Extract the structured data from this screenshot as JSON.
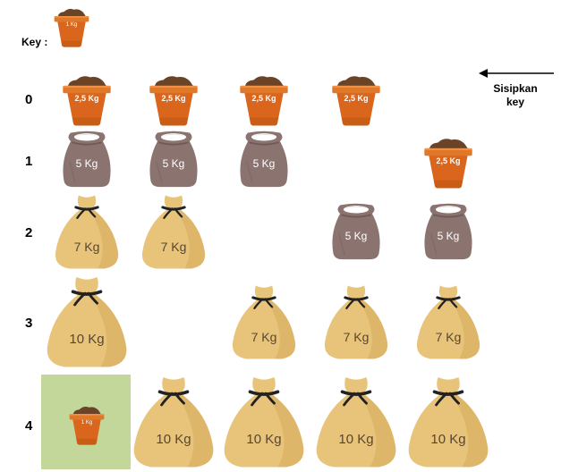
{
  "key": {
    "label": "Key :",
    "item": {
      "kind": "pot",
      "weight": "1 Kg"
    }
  },
  "insert_note": {
    "line1": "Sisipkan",
    "line2": "key",
    "arrow_direction": "left"
  },
  "rows": [
    {
      "index": "0",
      "cells": [
        {
          "kind": "pot",
          "weight": "2,5 Kg"
        },
        {
          "kind": "pot",
          "weight": "2,5 Kg"
        },
        {
          "kind": "pot",
          "weight": "2,5 Kg"
        },
        {
          "kind": "pot",
          "weight": "2,5 Kg"
        },
        null
      ]
    },
    {
      "index": "1",
      "cells": [
        {
          "kind": "sack",
          "weight": "5 Kg"
        },
        {
          "kind": "sack",
          "weight": "5 Kg"
        },
        {
          "kind": "sack",
          "weight": "5 Kg"
        },
        null,
        {
          "kind": "pot",
          "weight": "2,5 Kg"
        }
      ]
    },
    {
      "index": "2",
      "cells": [
        {
          "kind": "bag",
          "weight": "7 Kg"
        },
        {
          "kind": "bag",
          "weight": "7 Kg"
        },
        null,
        {
          "kind": "sack",
          "weight": "5 Kg"
        },
        {
          "kind": "sack",
          "weight": "5 Kg"
        }
      ]
    },
    {
      "index": "3",
      "cells": [
        {
          "kind": "bag",
          "weight": "10 Kg"
        },
        null,
        {
          "kind": "bag",
          "weight": "7 Kg"
        },
        {
          "kind": "bag",
          "weight": "7 Kg"
        },
        {
          "kind": "bag",
          "weight": "7 Kg"
        }
      ]
    },
    {
      "index": "4",
      "highlight_cell": 0,
      "cells": [
        {
          "kind": "pot",
          "weight": "1 Kg"
        },
        {
          "kind": "bag",
          "weight": "10 Kg"
        },
        {
          "kind": "bag",
          "weight": "10 Kg"
        },
        {
          "kind": "bag",
          "weight": "10 Kg"
        },
        {
          "kind": "bag",
          "weight": "10 Kg"
        }
      ]
    }
  ],
  "colors": {
    "pot_body": "#d9661c",
    "pot_rim": "#e0782a",
    "soil": "#6b4428",
    "sack": "#8b7370",
    "sack_top": "#ffffff",
    "bag": "#e8c47a",
    "bag_shade": "#d9b062",
    "tie": "#222222",
    "highlight": "#c4d79b"
  }
}
